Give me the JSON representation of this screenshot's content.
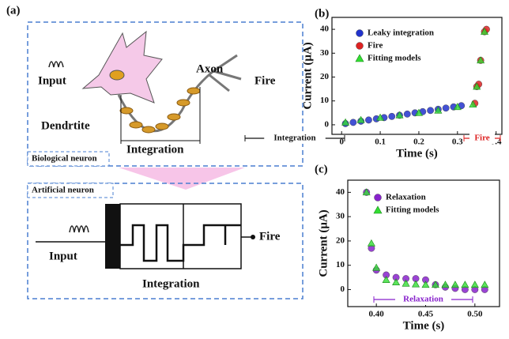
{
  "panel_a": {
    "label": "(a)",
    "bio": {
      "input": "Input",
      "axon": "Axon",
      "fire": "Fire",
      "dendrite": "Dendrtite",
      "integration": "Integration",
      "caption": "Biological neuron"
    },
    "art": {
      "caption": "Artificial neuron",
      "input": "Input",
      "integration": "Integration",
      "fire": "Fire"
    }
  },
  "chart_data": [
    {
      "type": "scatter",
      "label": "(b)",
      "xlabel": "Time (s)",
      "ylabel": "Current (μA)",
      "xlim": [
        -0.025,
        0.415
      ],
      "ylim": [
        -4,
        45
      ],
      "xticks": [
        0,
        0.1,
        0.2,
        0.3,
        0.4
      ],
      "yticks": [
        0,
        10,
        20,
        30,
        40
      ],
      "annotations": [
        "Integration",
        "Fire"
      ],
      "series": [
        {
          "name": "Leaky integration",
          "color": "#2233cc",
          "marker": "circle",
          "x": [
            0.01,
            0.03,
            0.05,
            0.07,
            0.09,
            0.11,
            0.13,
            0.15,
            0.17,
            0.19,
            0.21,
            0.23,
            0.25,
            0.27,
            0.29,
            0.31
          ],
          "values": [
            0.5,
            1,
            1.5,
            2,
            2.5,
            3,
            3.5,
            4,
            4.5,
            5,
            5.5,
            6,
            6.5,
            7,
            7.5,
            8
          ]
        },
        {
          "name": "Fire",
          "color": "#dd2222",
          "marker": "circle",
          "x": [
            0.345,
            0.35,
            0.355,
            0.36,
            0.37,
            0.375
          ],
          "values": [
            9,
            16,
            17,
            27,
            39,
            40
          ]
        },
        {
          "name": "Fitting models",
          "color": "#33dd33",
          "marker": "triangle",
          "x": [
            0.01,
            0.05,
            0.1,
            0.15,
            0.2,
            0.25,
            0.3,
            0.34,
            0.35,
            0.36,
            0.37
          ],
          "values": [
            1,
            2,
            3,
            4,
            5,
            6,
            7.5,
            8.5,
            16,
            27,
            39
          ]
        }
      ]
    },
    {
      "type": "scatter",
      "label": "(c)",
      "xlabel": "Time (s)",
      "ylabel": "Current (μA)",
      "xlim": [
        0.371,
        0.525
      ],
      "ylim": [
        -7,
        45
      ],
      "xticks": [
        {
          "value": 0.4,
          "label": "0.40"
        },
        0.45,
        {
          "value": 0.5,
          "label": "0.50"
        }
      ],
      "yticks": [
        0,
        10,
        20,
        30,
        40
      ],
      "annotations": [
        "Relaxation"
      ],
      "series": [
        {
          "name": "Relaxation",
          "color": "#8822cc",
          "marker": "circle",
          "x": [
            0.39,
            0.395,
            0.4,
            0.41,
            0.42,
            0.43,
            0.44,
            0.45,
            0.46,
            0.47,
            0.48,
            0.49,
            0.5,
            0.51
          ],
          "values": [
            40,
            17,
            8,
            6,
            5,
            4.5,
            4.5,
            4,
            2,
            1,
            0.5,
            0,
            0,
            0
          ]
        },
        {
          "name": "Fitting models",
          "color": "#33dd33",
          "marker": "triangle",
          "x": [
            0.39,
            0.395,
            0.4,
            0.41,
            0.42,
            0.43,
            0.44,
            0.45,
            0.46,
            0.47,
            0.48,
            0.49,
            0.5,
            0.51
          ],
          "values": [
            40,
            19,
            9,
            4,
            3,
            2.5,
            2.2,
            2,
            2,
            2,
            2,
            2,
            2,
            2
          ]
        }
      ]
    }
  ]
}
